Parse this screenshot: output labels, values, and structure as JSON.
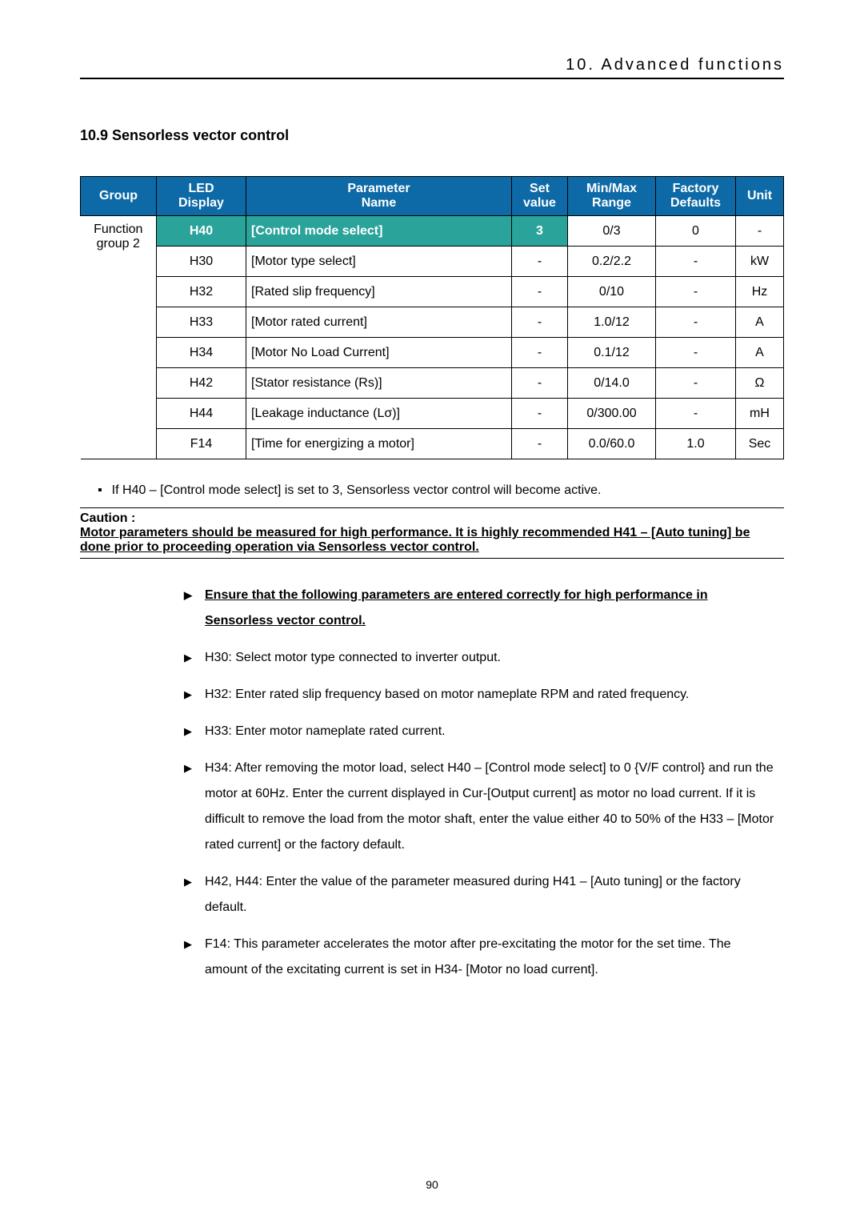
{
  "header": "10. Advanced functions",
  "section_title": "10.9 Sensorless vector control",
  "table": {
    "headers": [
      "Group",
      "LED Display",
      "Parameter Name",
      "Set value",
      "Min/Max Range",
      "Factory Defaults",
      "Unit"
    ],
    "group_label": "Function group 2",
    "rows": [
      {
        "led": "H40",
        "pname": "[Control mode select]",
        "set": "3",
        "range": "0/3",
        "def": "0",
        "unit": "-",
        "hl": true
      },
      {
        "led": "H30",
        "pname": "[Motor type select]",
        "set": "-",
        "range": "0.2/2.2",
        "def": "-",
        "unit": "kW",
        "hl": false
      },
      {
        "led": "H32",
        "pname": "[Rated slip frequency]",
        "set": "-",
        "range": "0/10",
        "def": "-",
        "unit": "Hz",
        "hl": false
      },
      {
        "led": "H33",
        "pname": "[Motor rated current]",
        "set": "-",
        "range": "1.0/12",
        "def": "-",
        "unit": "A",
        "hl": false
      },
      {
        "led": "H34",
        "pname": "[Motor No Load Current]",
        "set": "-",
        "range": "0.1/12",
        "def": "-",
        "unit": "A",
        "hl": false
      },
      {
        "led": "H42",
        "pname": "[Stator resistance (Rs)]",
        "set": "-",
        "range": "0/14.0",
        "def": "-",
        "unit": "Ω",
        "hl": false
      },
      {
        "led": "H44",
        "pname": "[Leakage inductance (Lσ)]",
        "set": "-",
        "range": "0/300.00",
        "def": "-",
        "unit": "mH",
        "hl": false
      },
      {
        "led": "F14",
        "pname": "[Time for energizing a motor]",
        "set": "-",
        "range": "0.0/60.0",
        "def": "1.0",
        "unit": "Sec",
        "hl": false
      }
    ]
  },
  "note": "If H40 – [Control mode select] is set to 3, Sensorless vector control will become active.",
  "caution": {
    "title": "Caution :",
    "text": "Motor parameters should be measured for high performance. It is highly recommended H41 – [Auto tuning] be done prior to proceeding operation via Sensorless vector control."
  },
  "bullets": [
    {
      "text": "Ensure that the following parameters are entered correctly for high performance in Sensorless vector control.",
      "first": true
    },
    {
      "text": "H30: Select motor type connected to inverter output.",
      "first": false
    },
    {
      "text": "H32: Enter rated slip frequency based on motor nameplate RPM and rated frequency.",
      "first": false
    },
    {
      "text": "H33: Enter motor nameplate rated current.",
      "first": false
    },
    {
      "text": "H34: After removing the motor load, select H40 – [Control mode select] to 0 {V/F control} and run the motor at 60Hz. Enter the current displayed in Cur-[Output current] as motor no load current. If it is difficult to remove the load from the motor shaft, enter the value either 40 to 50% of the H33 – [Motor rated current] or the factory default.",
      "first": false
    },
    {
      "text": "H42, H44: Enter the value of the parameter measured during H41 – [Auto tuning] or the factory default.",
      "first": false
    },
    {
      "text": "F14: This parameter accelerates the motor after pre-excitating the motor for the set time. The amount of the excitating current is set in H34- [Motor no load current].",
      "first": false
    }
  ],
  "page_number": "90",
  "colors": {
    "header_bg": "#0d6aa6",
    "highlight_bg": "#2aa39a"
  }
}
